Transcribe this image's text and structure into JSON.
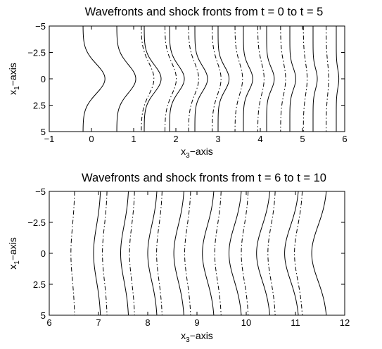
{
  "chart_data": [
    {
      "type": "line",
      "title": "Wavefronts and shock fronts from t = 0 to t = 5",
      "xlabel": "x",
      "xlabel_sub": "3",
      "xlabel_suffix": "−axis",
      "ylabel": "x",
      "ylabel_sub": "1",
      "ylabel_suffix": "−axis",
      "xlim": [
        -1,
        6
      ],
      "ylim": [
        5,
        -5
      ],
      "y_inverted": true,
      "grid": false,
      "xticks": [
        -1,
        0,
        1,
        2,
        3,
        4,
        5,
        6
      ],
      "xtick_labels": [
        "−1",
        "0",
        "1",
        "2",
        "3",
        "4",
        "5",
        "6"
      ],
      "yticks": [
        -5,
        -2.5,
        0,
        2.5,
        5
      ],
      "ytick_labels": [
        "−5",
        "−2.5",
        "0",
        "2.5",
        "5"
      ],
      "series": [
        {
          "style": "solid",
          "curves": [
            {
              "t": 0,
              "base": -0.2,
              "amp": 0.52,
              "width": 1.4
            },
            {
              "t": 0.5,
              "base": 0.6,
              "amp": 0.45,
              "width": 1.35
            },
            {
              "t": 1,
              "base": 1.25,
              "amp": 0.4,
              "width": 1.3
            },
            {
              "t": 1.5,
              "base": 1.85,
              "amp": 0.35,
              "width": 1.25
            },
            {
              "t": 2,
              "base": 2.45,
              "amp": 0.3,
              "width": 1.2
            },
            {
              "t": 2.5,
              "base": 3.0,
              "amp": 0.26,
              "width": 1.15
            },
            {
              "t": 3,
              "base": 3.6,
              "amp": 0.22,
              "width": 1.1
            },
            {
              "t": 3.5,
              "base": 4.15,
              "amp": 0.18,
              "width": 1.05
            },
            {
              "t": 4,
              "base": 4.7,
              "amp": 0.14,
              "width": 1.0
            },
            {
              "t": 4.5,
              "base": 5.25,
              "amp": 0.1,
              "width": 0.95
            },
            {
              "t": 5,
              "base": 5.8,
              "amp": 0.06,
              "width": 0.9
            }
          ]
        },
        {
          "style": "dash-dot",
          "curves": [
            {
              "t": 1,
              "base": 1.18,
              "amp": 0.3,
              "width": 1.5
            },
            {
              "t": 1.5,
              "base": 1.74,
              "amp": 0.27,
              "width": 1.5
            },
            {
              "t": 2,
              "base": 2.3,
              "amp": 0.24,
              "width": 1.5
            },
            {
              "t": 2.5,
              "base": 2.86,
              "amp": 0.21,
              "width": 1.5
            },
            {
              "t": 3,
              "base": 3.4,
              "amp": 0.18,
              "width": 1.5
            },
            {
              "t": 3.5,
              "base": 3.94,
              "amp": 0.15,
              "width": 1.5
            },
            {
              "t": 4,
              "base": 4.48,
              "amp": 0.12,
              "width": 1.5
            },
            {
              "t": 4.5,
              "base": 5.02,
              "amp": 0.09,
              "width": 1.5
            },
            {
              "t": 5,
              "base": 5.56,
              "amp": 0.06,
              "width": 1.5
            }
          ]
        }
      ]
    },
    {
      "type": "line",
      "title": "Wavefronts and shock fronts from t = 6 to t = 10",
      "xlabel": "x",
      "xlabel_sub": "3",
      "xlabel_suffix": "−axis",
      "ylabel": "x",
      "ylabel_sub": "1",
      "ylabel_suffix": "−axis",
      "xlim": [
        6,
        12
      ],
      "ylim": [
        5,
        -5
      ],
      "y_inverted": true,
      "grid": false,
      "xticks": [
        6,
        7,
        8,
        9,
        10,
        11,
        12
      ],
      "xtick_labels": [
        "6",
        "7",
        "8",
        "9",
        "10",
        "11",
        "12"
      ],
      "yticks": [
        -5,
        -2.5,
        0,
        2.5,
        5
      ],
      "ytick_labels": [
        "−5",
        "−2.5",
        "0",
        "2.5",
        "5"
      ],
      "series": [
        {
          "style": "solid",
          "curves": [
            {
              "t": 6,
              "base": 7.05,
              "amp": -0.15,
              "width": 2.2
            },
            {
              "t": 6.5,
              "base": 7.62,
              "amp": -0.17,
              "width": 2.2
            },
            {
              "t": 7,
              "base": 8.2,
              "amp": -0.2,
              "width": 2.2
            },
            {
              "t": 7.5,
              "base": 8.75,
              "amp": -0.22,
              "width": 2.2
            },
            {
              "t": 8,
              "base": 9.36,
              "amp": -0.25,
              "width": 2.2
            },
            {
              "t": 8.5,
              "base": 9.92,
              "amp": -0.27,
              "width": 2.2
            },
            {
              "t": 9,
              "base": 10.5,
              "amp": -0.29,
              "width": 2.2
            },
            {
              "t": 9.5,
              "base": 11.08,
              "amp": -0.3,
              "width": 2.2
            },
            {
              "t": 10,
              "base": 11.65,
              "amp": -0.32,
              "width": 2.2
            }
          ]
        },
        {
          "style": "dash-dot",
          "curves": [
            {
              "t": 6,
              "base": 6.52,
              "amp": -0.08,
              "width": 2.2
            },
            {
              "t": 6.5,
              "base": 7.18,
              "amp": -0.1,
              "width": 2.2
            },
            {
              "t": 7,
              "base": 7.74,
              "amp": -0.11,
              "width": 2.2
            },
            {
              "t": 7.5,
              "base": 8.3,
              "amp": -0.12,
              "width": 2.2
            },
            {
              "t": 8,
              "base": 8.88,
              "amp": -0.13,
              "width": 2.2
            },
            {
              "t": 8.5,
              "base": 9.5,
              "amp": -0.14,
              "width": 2.2
            },
            {
              "t": 9,
              "base": 10.05,
              "amp": -0.15,
              "width": 2.2
            },
            {
              "t": 9.5,
              "base": 10.6,
              "amp": -0.16,
              "width": 2.2
            },
            {
              "t": 10,
              "base": 11.15,
              "amp": -0.17,
              "width": 2.2
            }
          ]
        }
      ]
    }
  ]
}
